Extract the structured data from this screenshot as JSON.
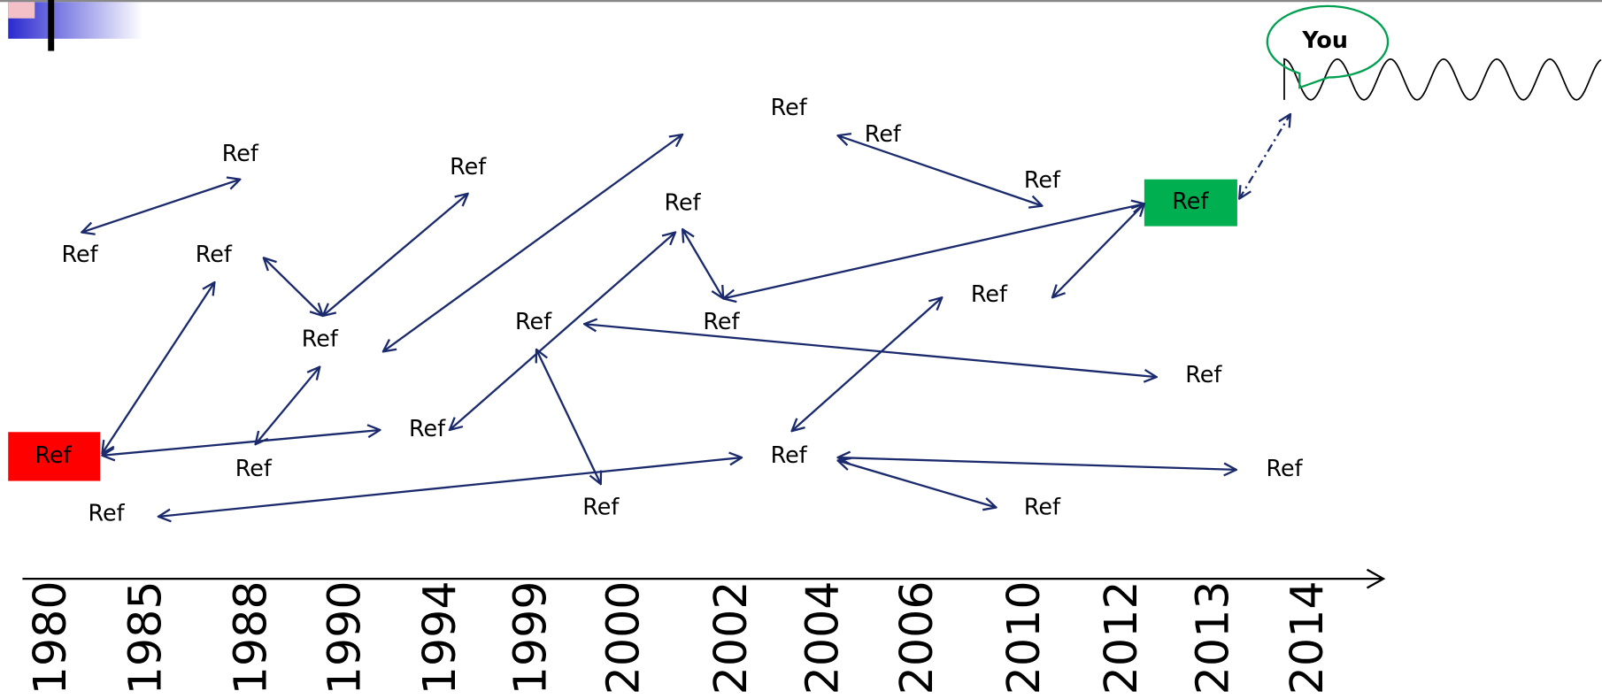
{
  "nodes": [
    {
      "label": "Ref"
    },
    {
      "label": "Ref"
    },
    {
      "label": "Ref"
    },
    {
      "label": "Ref"
    },
    {
      "label": "Ref"
    },
    {
      "label": "Ref"
    },
    {
      "label": "Ref"
    },
    {
      "label": "Ref"
    },
    {
      "label": "Ref"
    },
    {
      "label": "Ref"
    },
    {
      "label": "Ref"
    },
    {
      "label": "Ref"
    },
    {
      "label": "Ref"
    },
    {
      "label": "Ref"
    },
    {
      "label": "Ref"
    },
    {
      "label": "Ref"
    },
    {
      "label": "Ref"
    },
    {
      "label": "Ref"
    },
    {
      "label": "Ref"
    },
    {
      "label": "Ref"
    },
    {
      "label": "Ref"
    },
    {
      "label": "Ref"
    }
  ],
  "you": {
    "label": "You"
  },
  "timeline": {
    "years": [
      "1980",
      "1985",
      "1988",
      "1990",
      "1994",
      "1999",
      "2000",
      "2002",
      "2004",
      "2006",
      "2010",
      "2012",
      "2013",
      "2014"
    ]
  }
}
